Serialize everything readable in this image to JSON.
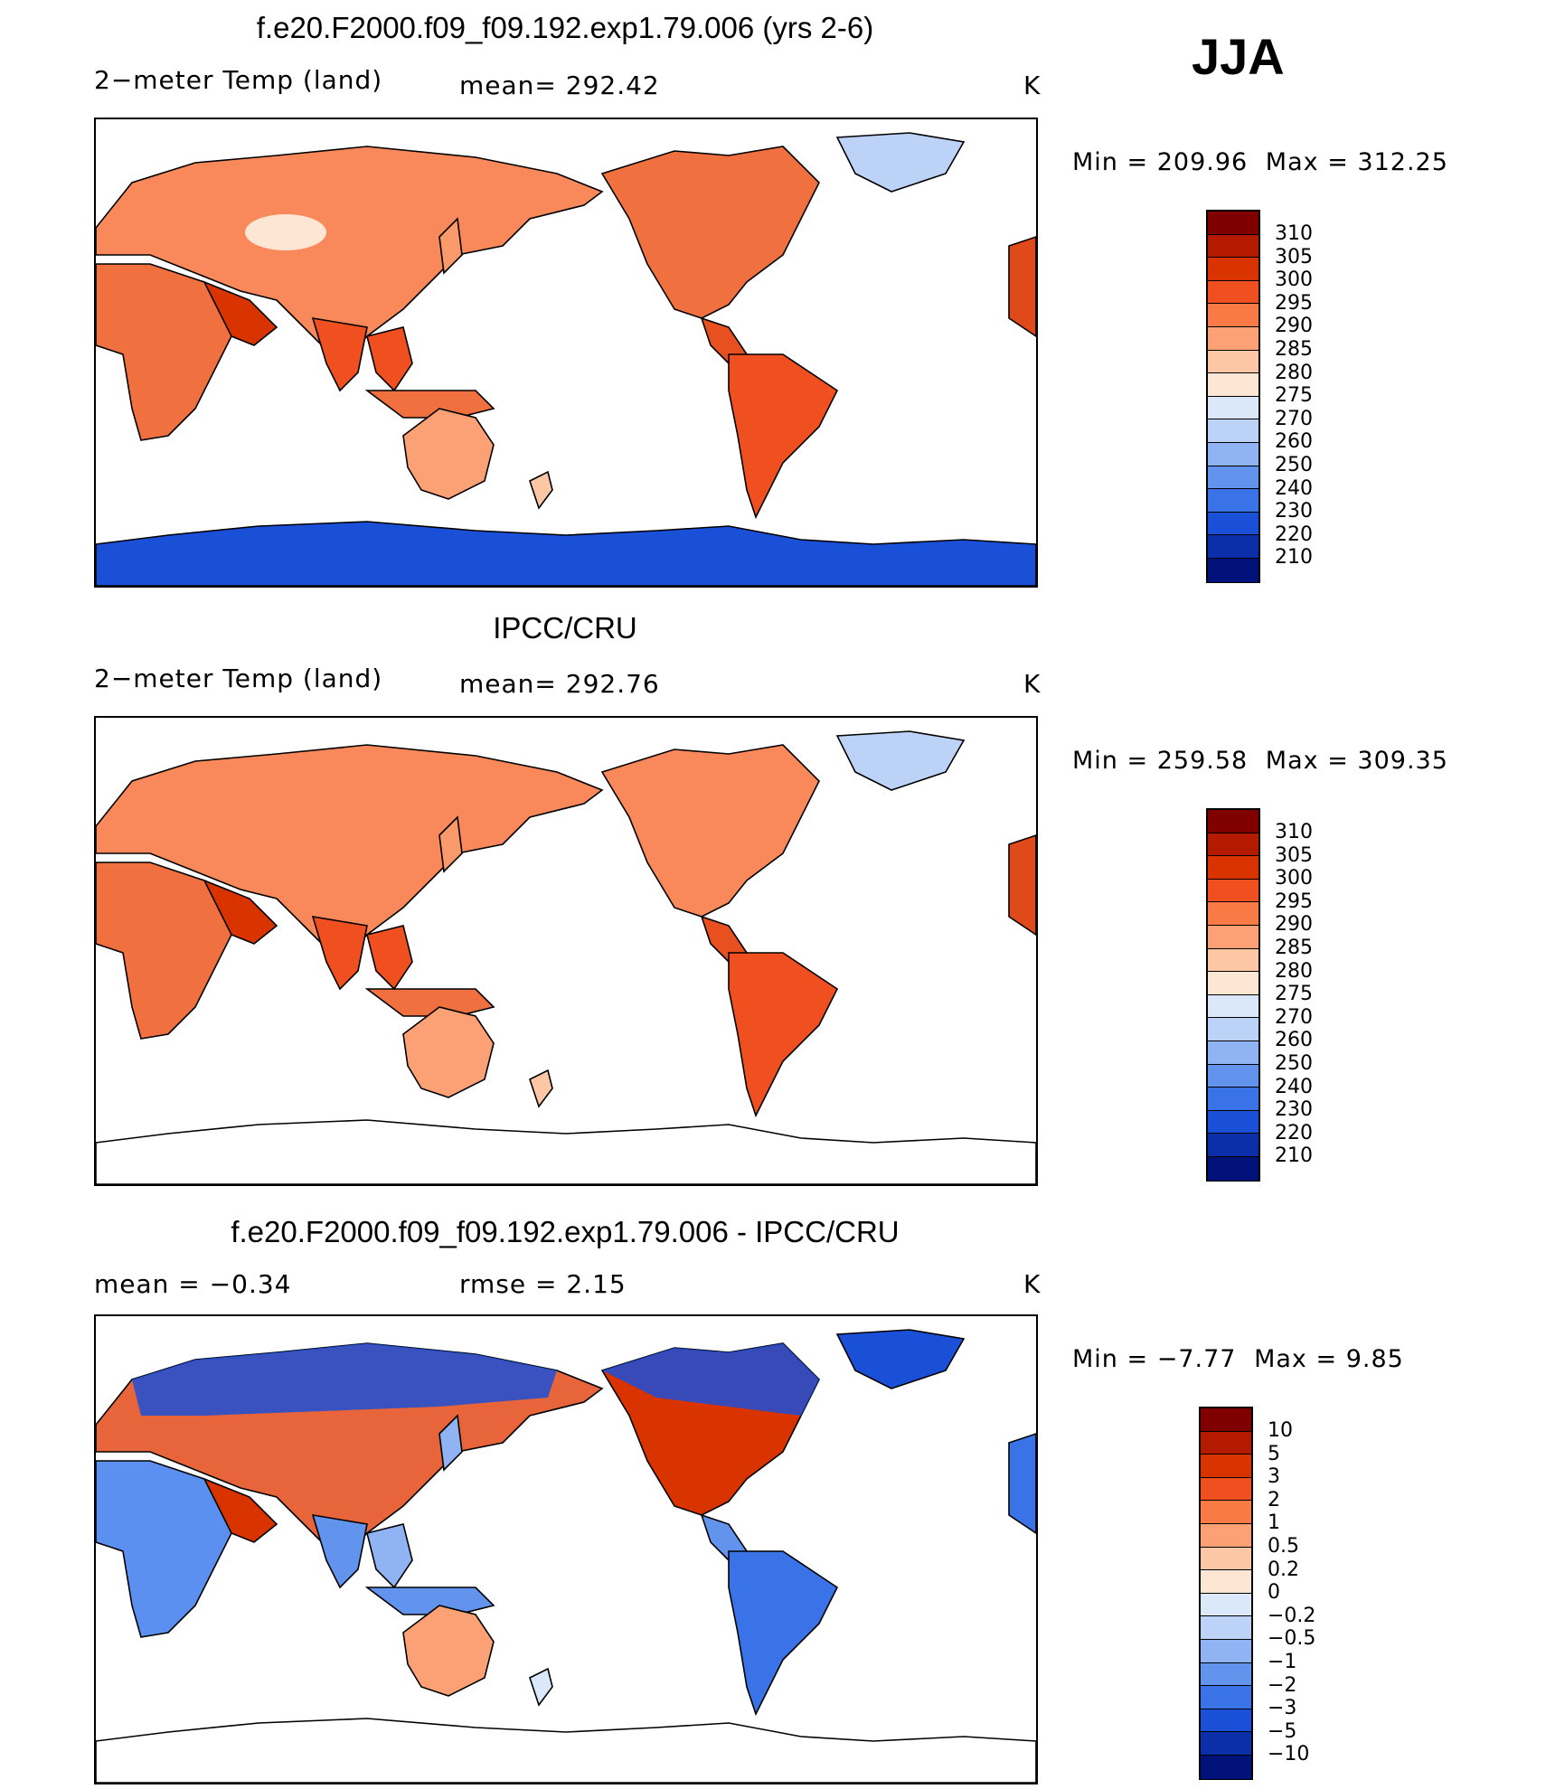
{
  "season": "JJA",
  "panels": [
    {
      "title": "f.e20.F2000.f09_f09.192.exp1.79.006 (yrs 2-6)",
      "left_label": "2−meter Temp (land)",
      "center_label": "mean= 292.42",
      "units": "K",
      "min_text": "Min",
      "min_value": "= 209.96",
      "max_text": "Max",
      "max_value": "= 312.25",
      "kind": "model"
    },
    {
      "title": "IPCC/CRU",
      "left_label": "2−meter Temp (land)",
      "center_label": "mean= 292.76",
      "units": "K",
      "min_text": "Min",
      "min_value": "= 259.58",
      "max_text": "Max",
      "max_value": "= 309.35",
      "kind": "obs"
    },
    {
      "title": "f.e20.F2000.f09_f09.192.exp1.79.006 - IPCC/CRU",
      "left_label": "mean = −0.34",
      "center_label": "rmse = 2.15",
      "units": "K",
      "min_text": "Min",
      "min_value": "= −7.77",
      "max_text": "Max",
      "max_value": "= 9.85",
      "kind": "diff"
    }
  ],
  "colorbar_temp": {
    "labels": [
      "310",
      "305",
      "300",
      "295",
      "290",
      "285",
      "280",
      "275",
      "270",
      "260",
      "250",
      "240",
      "230",
      "220",
      "210"
    ],
    "colors": [
      "#800000",
      "#b31a00",
      "#d93300",
      "#f05020",
      "#fa7a45",
      "#fca075",
      "#fdc6a5",
      "#fee6d5",
      "#dbe8fa",
      "#bcd2f7",
      "#8fb3f3",
      "#6294ee",
      "#3a72e8",
      "#1a4fd8",
      "#0a2fa8",
      "#00127a"
    ]
  },
  "colorbar_diff": {
    "labels": [
      "10",
      "5",
      "3",
      "2",
      "1",
      "0.5",
      "0.2",
      "0",
      "−0.2",
      "−0.5",
      "−1",
      "−2",
      "−3",
      "−5",
      "−10"
    ],
    "colors": [
      "#800000",
      "#b31a00",
      "#d93300",
      "#f05020",
      "#fa7a45",
      "#fca075",
      "#fdc6a5",
      "#fee6d5",
      "#dbe8fa",
      "#bcd2f7",
      "#8fb3f3",
      "#6294ee",
      "#3a72e8",
      "#1a4fd8",
      "#0a2fa8",
      "#00127a"
    ]
  }
}
